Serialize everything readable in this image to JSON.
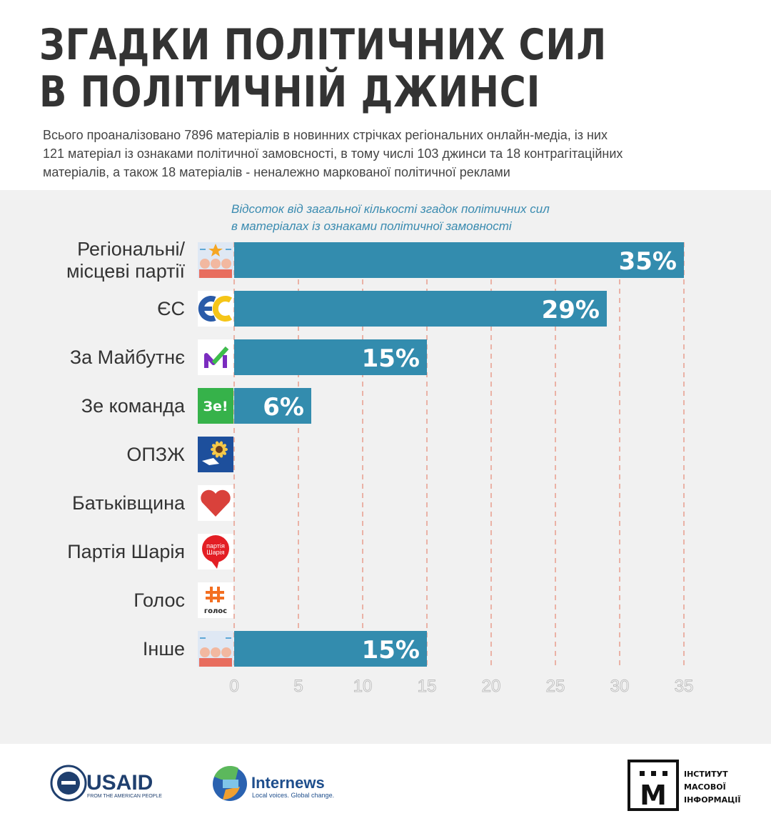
{
  "title_lines": [
    "ЗГАДКИ ПОЛІТИЧНИХ СИЛ",
    "В ПОЛІТИЧНІЙ ДЖИНСІ"
  ],
  "subtitle_lines": [
    "Всього проаналізовано 7896 матеріалів в новинних стрічках регіональних онлайн-медіа, із них",
    "121 матеріал із ознаками політичної замовсності, в тому числі 103 джинси та 18 контрагітаційних",
    "матеріалів, а також 18 матеріалів - неналежно маркованої політичної реклами"
  ],
  "chart_data": {
    "type": "bar",
    "orientation": "horizontal",
    "title": "Відсоток від загальної кількості згадок політичних сил в матеріалах із ознаками політичної замовності",
    "title_lines": [
      "Відсоток від загальної кількості згадок політичних сил",
      "в матеріалах із ознаками політичної замовності"
    ],
    "categories": [
      [
        "Регіональні/",
        "місцеві партії"
      ],
      [
        "ЄС"
      ],
      [
        "За Майбутнє"
      ],
      [
        "Зе команда"
      ],
      [
        "ОПЗЖ"
      ],
      [
        "Батьківщина"
      ],
      [
        "Партія Шарія"
      ],
      [
        "Голос"
      ],
      [
        "Інше"
      ]
    ],
    "values": [
      35,
      29,
      15,
      6,
      0,
      0,
      0,
      0,
      15
    ],
    "value_labels": [
      "35%",
      "29%",
      "15%",
      "6%",
      "",
      "",
      "",
      "",
      "15%"
    ],
    "icons": [
      "regional-party-icon",
      "es-logo-icon",
      "za-maibutne-logo-icon",
      "ze-komanda-logo-icon",
      "opzzh-logo-icon",
      "batkivshchyna-heart-icon",
      "partiia-shariia-logo-icon",
      "holos-logo-icon",
      "other-party-icon"
    ],
    "icon_texts": {
      "ze": "Зе!",
      "shariia_1": "партія",
      "shariia_2": "Шарія",
      "holos": "голос"
    },
    "xlim": [
      0,
      35
    ],
    "xticks": [
      0,
      5,
      10,
      15,
      20,
      25,
      30,
      35
    ],
    "grid": "vertical dashed",
    "bar_color": "#338cae",
    "grid_color": "#e2745a"
  },
  "footer": {
    "usaid": {
      "name": "USAID",
      "tagline": "FROM THE AMERICAN PEOPLE"
    },
    "internews": {
      "name": "Internews",
      "tagline": "Local voices. Global change."
    },
    "imi": {
      "letter": "М",
      "lines": [
        "ІНСТИТУТ",
        "МАСОВОЇ",
        "ІНФОРМАЦІЇ"
      ]
    }
  }
}
